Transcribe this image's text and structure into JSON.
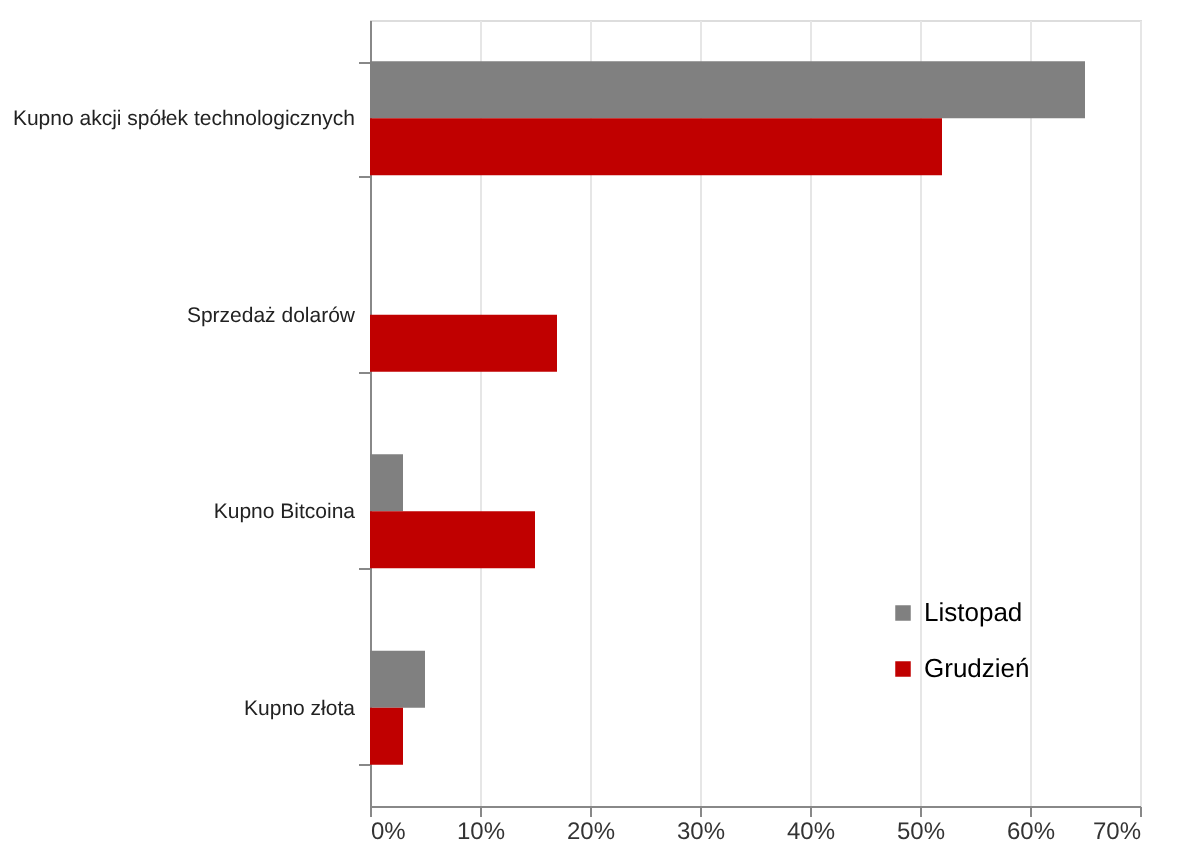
{
  "chart_data": {
    "type": "bar",
    "orientation": "horizontal",
    "categories": [
      "Kupno akcji spółek technologicznych",
      "Sprzedaż dolarów",
      "Kupno Bitcoina",
      "Kupno złota"
    ],
    "series": [
      {
        "name": "Listopad",
        "color": "#808080",
        "values": [
          65,
          null,
          3,
          5
        ]
      },
      {
        "name": "Grudzień",
        "color": "#c00000",
        "values": [
          52,
          17,
          15,
          3
        ]
      }
    ],
    "xlim": [
      0,
      70
    ],
    "xticks": [
      {
        "value": 0,
        "label": "0%"
      },
      {
        "value": 10,
        "label": "10%"
      },
      {
        "value": 20,
        "label": "20%"
      },
      {
        "value": 30,
        "label": "30%"
      },
      {
        "value": 40,
        "label": "40%"
      },
      {
        "value": 50,
        "label": "50%"
      },
      {
        "value": 60,
        "label": "60%"
      },
      {
        "value": 70,
        "label": "70%"
      }
    ],
    "grid": "x",
    "legend": "bottom right"
  }
}
